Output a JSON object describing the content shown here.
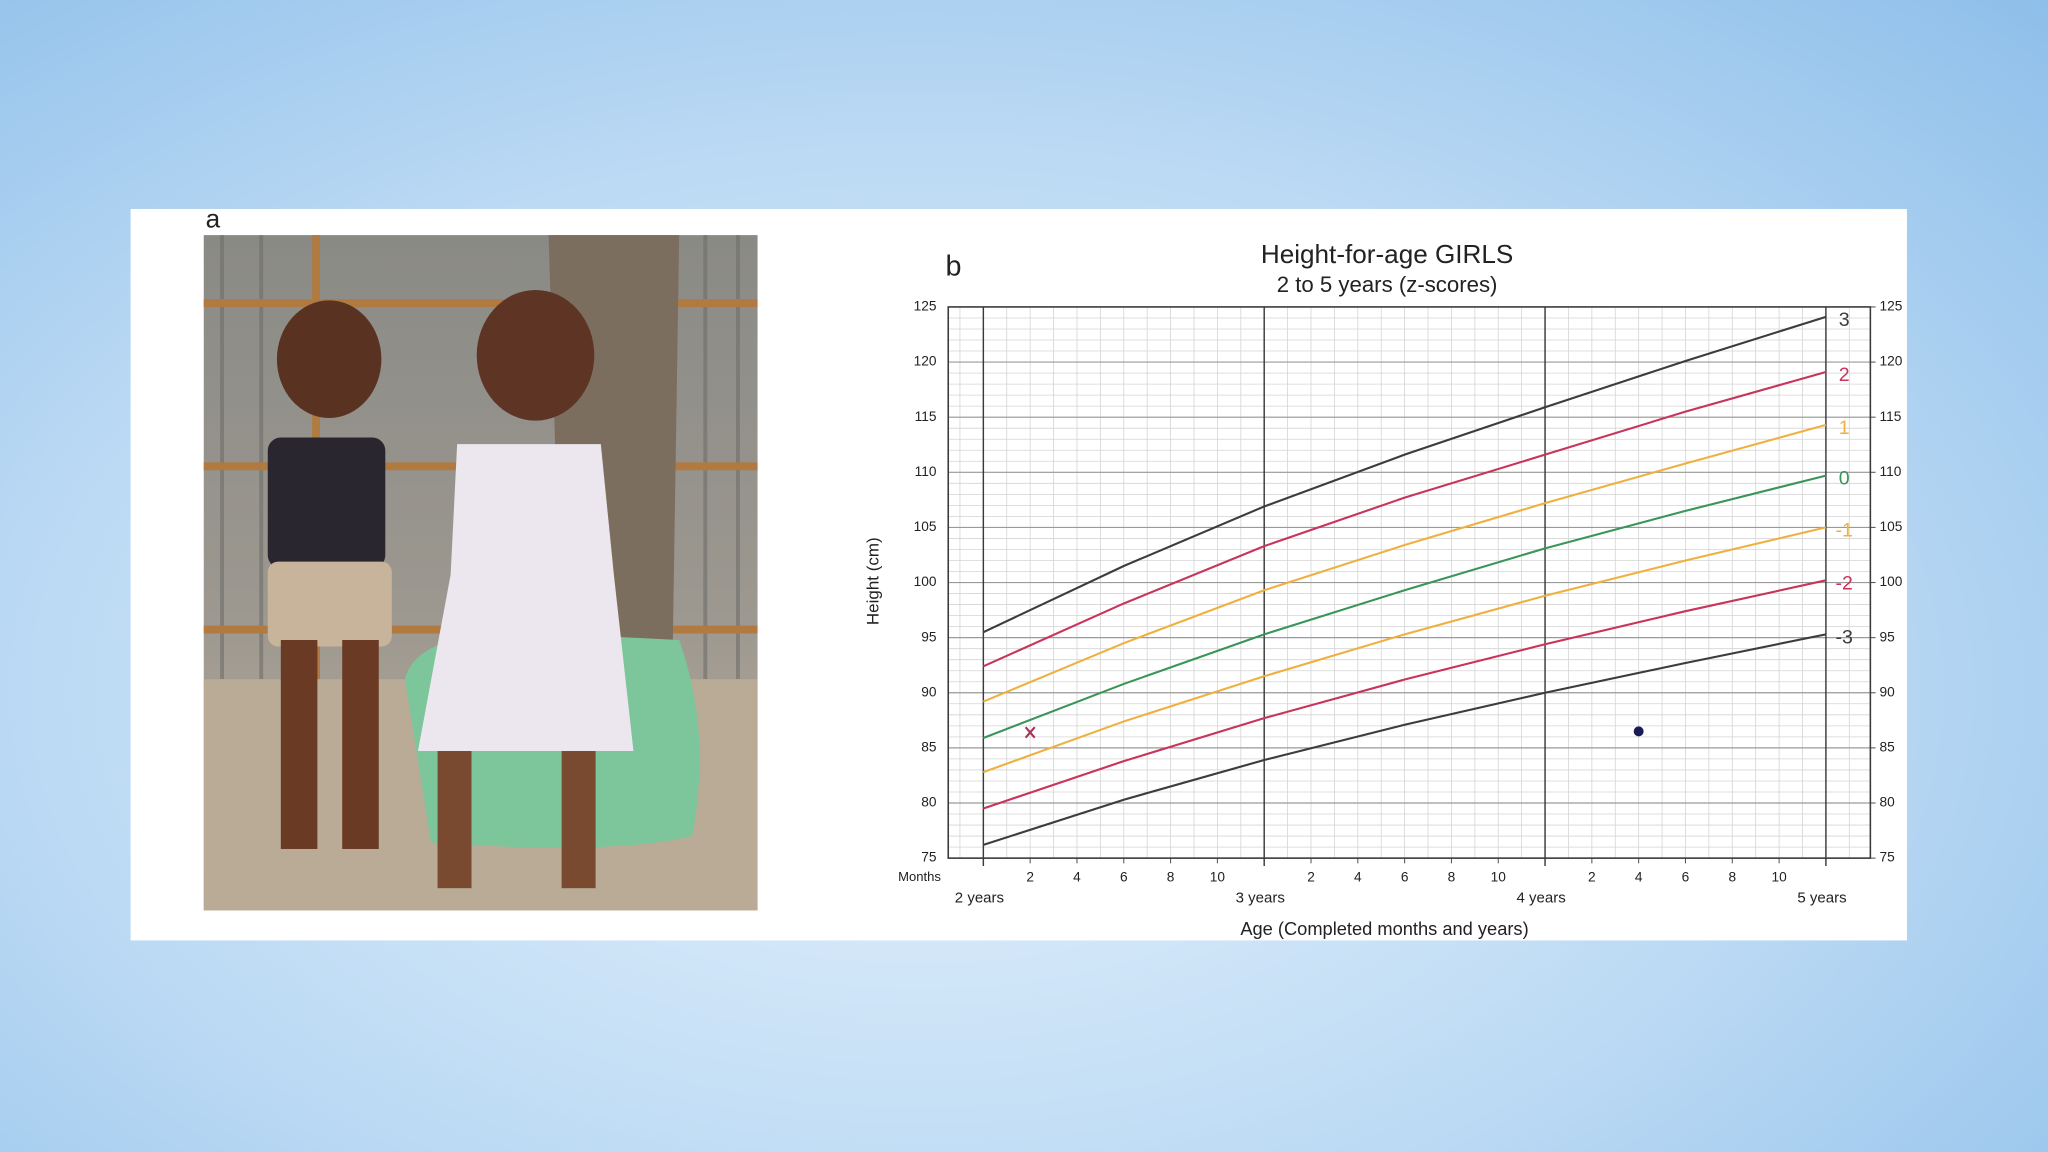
{
  "panel_a_label": "a",
  "chart_data": {
    "type": "line",
    "panel_label": "b",
    "title": "Height-for-age  GIRLS",
    "subtitle": "2 to 5 years (z-scores)",
    "ylabel": "Height (cm)",
    "xlabel": "Age (Completed months and years)",
    "x_unit_label": "Months",
    "x": [
      24,
      30,
      36,
      42,
      48,
      54,
      60
    ],
    "xlim": [
      22.5,
      61.9
    ],
    "xticks": [
      {
        "value": 26,
        "label": "2"
      },
      {
        "value": 28,
        "label": "4"
      },
      {
        "value": 30,
        "label": "6"
      },
      {
        "value": 32,
        "label": "8"
      },
      {
        "value": 34,
        "label": "10"
      },
      {
        "value": 38,
        "label": "2"
      },
      {
        "value": 40,
        "label": "4"
      },
      {
        "value": 42,
        "label": "6"
      },
      {
        "value": 44,
        "label": "8"
      },
      {
        "value": 46,
        "label": "10"
      },
      {
        "value": 50,
        "label": "2"
      },
      {
        "value": 52,
        "label": "4"
      },
      {
        "value": 54,
        "label": "6"
      },
      {
        "value": 56,
        "label": "8"
      },
      {
        "value": 58,
        "label": "10"
      }
    ],
    "year_ticks": [
      {
        "value": 24,
        "label": "2 years"
      },
      {
        "value": 36,
        "label": "3 years"
      },
      {
        "value": 48,
        "label": "4 years"
      },
      {
        "value": 60,
        "label": "5 years"
      }
    ],
    "ylim": [
      75,
      125
    ],
    "yticks": [
      75,
      80,
      85,
      90,
      95,
      100,
      105,
      110,
      115,
      120,
      125
    ],
    "y2lim": [
      75,
      125
    ],
    "y2ticks": [
      75,
      80,
      85,
      90,
      95,
      100,
      105,
      110,
      115,
      120,
      125
    ],
    "grid": true,
    "x_minor_step": 1,
    "y_minor_step": 1,
    "series": [
      {
        "name": "3",
        "color": "#3c3c3c",
        "values": [
          95.5,
          101.5,
          106.9,
          111.6,
          115.9,
          120.1,
          124.1
        ]
      },
      {
        "name": "2",
        "color": "#c8345a",
        "values": [
          92.4,
          98.1,
          103.3,
          107.7,
          111.6,
          115.5,
          119.1
        ]
      },
      {
        "name": "1",
        "color": "#f0b040",
        "values": [
          89.2,
          94.5,
          99.3,
          103.4,
          107.2,
          110.8,
          114.3
        ]
      },
      {
        "name": "0",
        "color": "#3a9558",
        "values": [
          85.9,
          90.8,
          95.3,
          99.3,
          103.1,
          106.5,
          109.7
        ]
      },
      {
        "name": "-1",
        "color": "#f0b040",
        "values": [
          82.8,
          87.4,
          91.5,
          95.3,
          98.8,
          102.0,
          105.0
        ]
      },
      {
        "name": "-2",
        "color": "#c8345a",
        "values": [
          79.5,
          83.8,
          87.7,
          91.2,
          94.4,
          97.4,
          100.2
        ]
      },
      {
        "name": "-3",
        "color": "#3c3c3c",
        "values": [
          76.2,
          80.3,
          83.9,
          87.1,
          90.0,
          92.7,
          95.3
        ]
      }
    ],
    "points": [
      {
        "x": 26,
        "y": 86.4,
        "symbol": "x",
        "color": "#a8305a"
      },
      {
        "x": 52,
        "y": 86.5,
        "symbol": "dot",
        "color": "#1a1a55"
      }
    ]
  }
}
